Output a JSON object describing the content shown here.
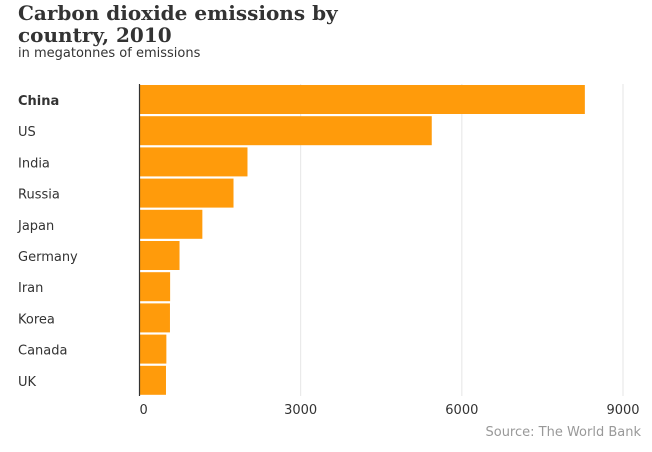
{
  "chart_data": {
    "type": "bar",
    "orientation": "horizontal",
    "title": "Carbon dioxide emissions by country, 2010",
    "subtitle": "in megatonnes of emissions",
    "categories": [
      "China",
      "US",
      "India",
      "Russia",
      "Japan",
      "Germany",
      "Iran",
      "Korea",
      "Canada",
      "UK"
    ],
    "highlighted": "China",
    "values": [
      8290,
      5440,
      2010,
      1750,
      1170,
      745,
      570,
      567,
      500,
      493
    ],
    "xlim": [
      0,
      9000
    ],
    "xticks": [
      0,
      3000,
      6000,
      9000
    ],
    "xlabel": "",
    "ylabel": "",
    "grid": true,
    "bar_color": "#ff9b0b",
    "source": "Source: The World Bank"
  }
}
